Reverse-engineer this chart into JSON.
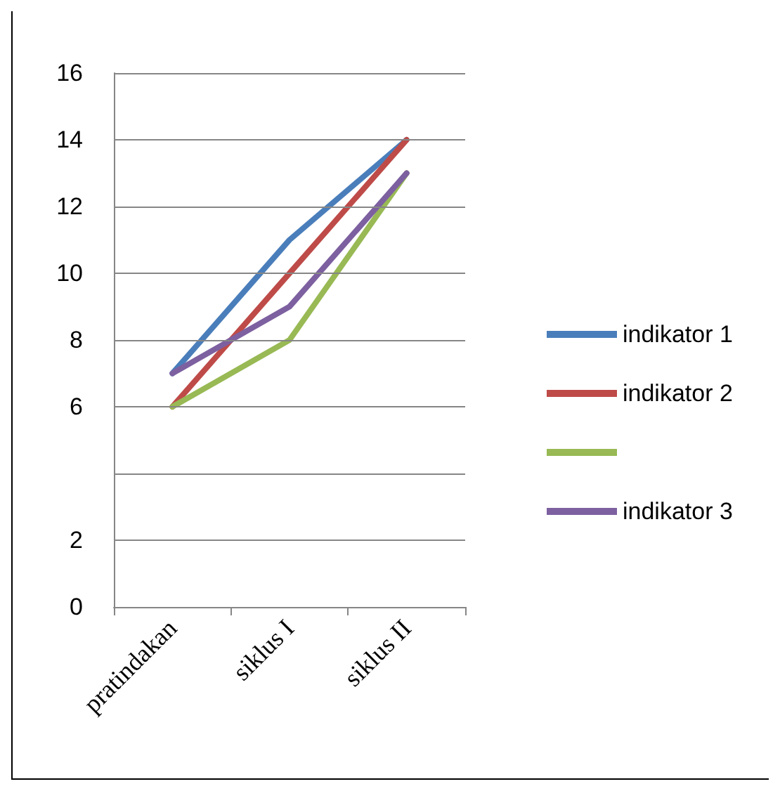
{
  "chart_data": {
    "type": "line",
    "categories": [
      "pratindakan",
      "siklus I",
      "siklus II"
    ],
    "series": [
      {
        "name": "indikator 1",
        "color": "#4a7ebb",
        "values": [
          7,
          11,
          14
        ]
      },
      {
        "name": "indikator 2",
        "color": "#be4b48",
        "values": [
          6,
          10,
          14
        ]
      },
      {
        "color": "#98b954",
        "values": [
          6,
          8,
          13
        ]
      },
      {
        "name": "indikator 3",
        "color": "#7d60a0",
        "values": [
          7,
          9,
          13
        ]
      }
    ],
    "ylim": [
      0,
      16
    ],
    "yticks": [
      0,
      2,
      {
        "value": 4,
        "label": null
      },
      6,
      8,
      10,
      12,
      14,
      16
    ],
    "grid": "y",
    "legend": "right",
    "marker": "none",
    "line_style": "solid"
  }
}
